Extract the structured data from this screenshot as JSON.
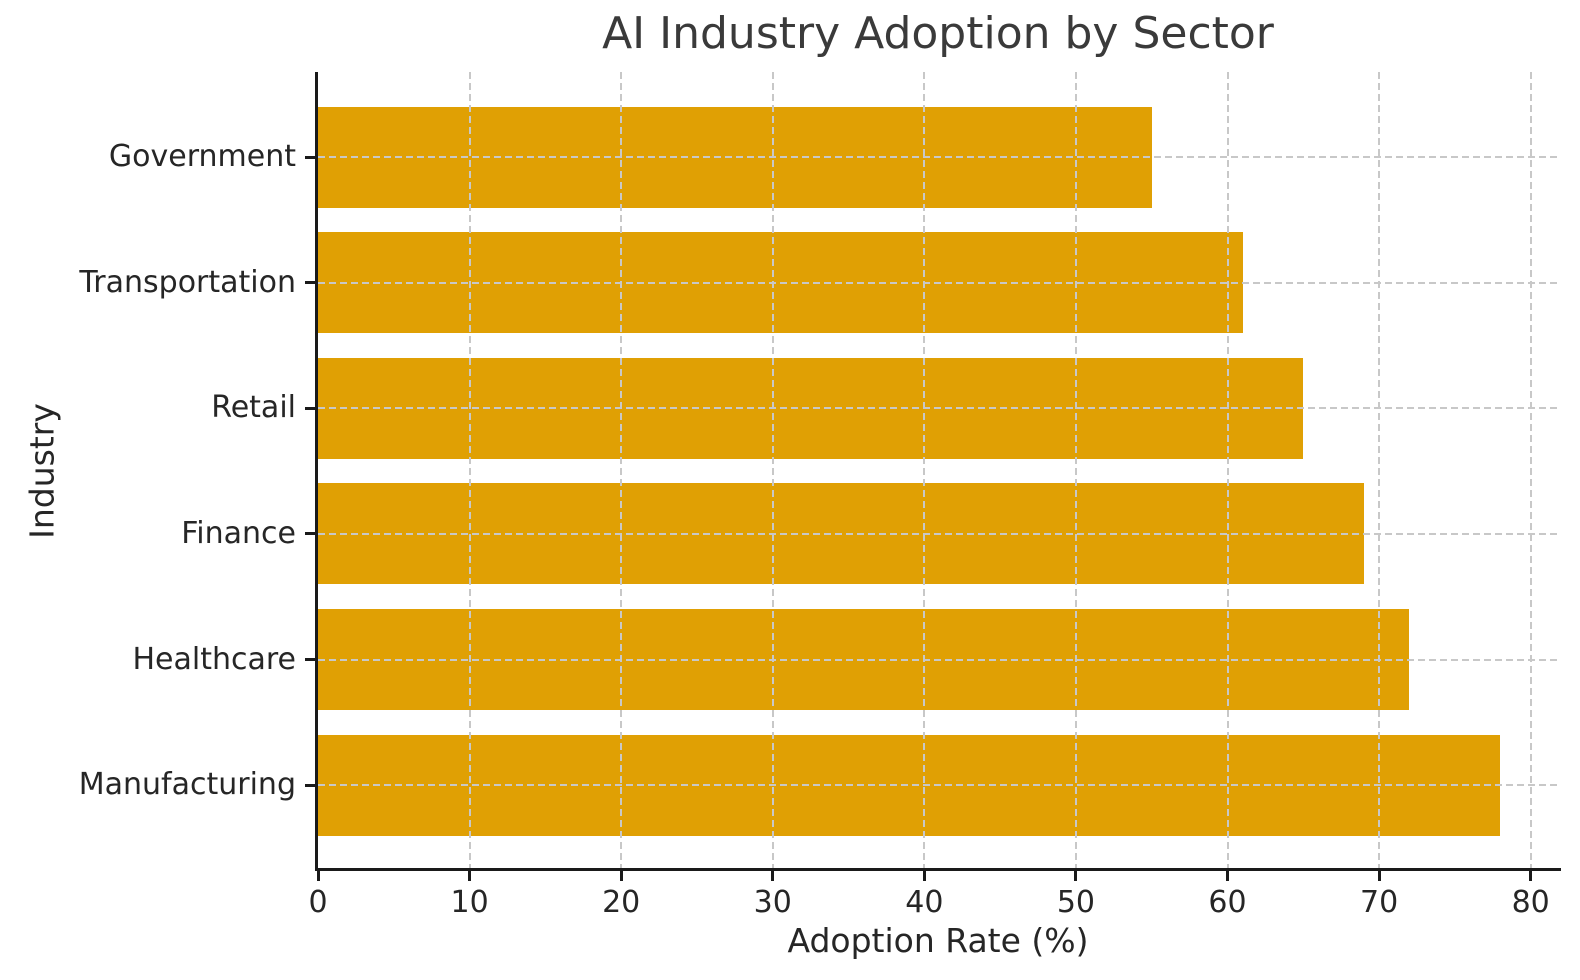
{
  "chart_data": {
    "type": "bar",
    "orientation": "horizontal",
    "title": "AI Industry Adoption by Sector",
    "xlabel": "Adoption Rate (%)",
    "ylabel": "Industry",
    "category_order": "top-to-bottom",
    "categories": [
      "Government",
      "Transportation",
      "Retail",
      "Finance",
      "Healthcare",
      "Manufacturing"
    ],
    "values": [
      55,
      61,
      65,
      69,
      72,
      78
    ],
    "xticks": [
      0,
      10,
      20,
      30,
      40,
      50,
      60,
      70,
      80
    ],
    "xlim": [
      0,
      82
    ],
    "grid": "dashed, both axes, drawn above bars",
    "legend": "none",
    "colors": {
      "bar": "#E0A004",
      "grid": "#c8c8c8",
      "spine": "#1a1a1a",
      "tick_text": "#262626",
      "title_text": "#3a3a3a",
      "background": "#ffffff"
    }
  }
}
